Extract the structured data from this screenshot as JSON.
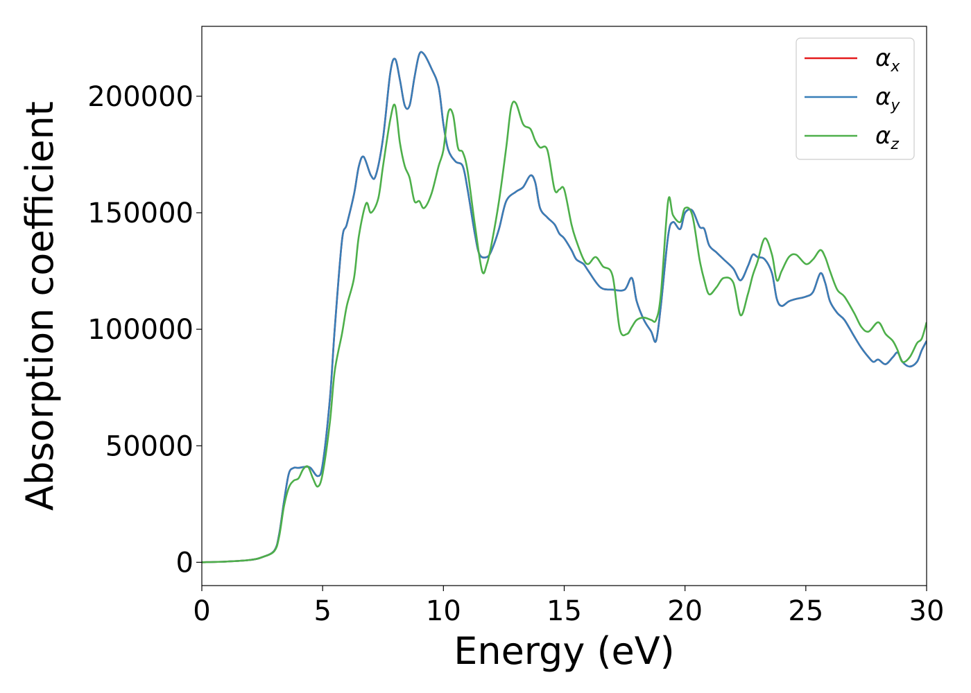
{
  "chart_data": {
    "type": "line",
    "title": "",
    "xlabel": "Energy (eV)",
    "ylabel": "Absorption coefficient",
    "xlim": [
      0,
      30
    ],
    "ylim": [
      -10000,
      230000
    ],
    "xticks": [
      0,
      5,
      10,
      15,
      20,
      25,
      30
    ],
    "xtick_labels": [
      "0",
      "5",
      "10",
      "15",
      "20",
      "25",
      "30"
    ],
    "yticks": [
      0,
      50000,
      100000,
      150000,
      200000
    ],
    "ytick_labels": [
      "0",
      "50000",
      "100000",
      "150000",
      "200000"
    ],
    "grid": false,
    "legend_position": "top-right",
    "series": [
      {
        "name": "α",
        "subscript": "x",
        "color": "#e41a1c",
        "x": [
          0,
          1,
          2,
          2.5,
          3.0,
          3.2,
          3.4,
          3.6,
          3.8,
          4.0,
          4.3,
          4.5,
          4.8,
          5.0,
          5.3,
          5.5,
          5.8,
          6.0,
          6.3,
          6.5,
          6.7,
          7.0,
          7.2,
          7.5,
          7.8,
          8.0,
          8.2,
          8.4,
          8.6,
          8.8,
          9.0,
          9.2,
          9.5,
          9.8,
          10.0,
          10.2,
          10.5,
          10.8,
          11.0,
          11.3,
          11.5,
          11.8,
          12.0,
          12.3,
          12.6,
          13.0,
          13.3,
          13.6,
          13.8,
          14.0,
          14.3,
          14.6,
          14.8,
          15.0,
          15.3,
          15.5,
          15.8,
          16.0,
          16.5,
          17.0,
          17.5,
          17.8,
          18.0,
          18.3,
          18.6,
          18.8,
          19.0,
          19.3,
          19.5,
          19.8,
          20.0,
          20.3,
          20.6,
          20.8,
          21.0,
          21.3,
          21.6,
          22.0,
          22.3,
          22.6,
          22.8,
          23.0,
          23.3,
          23.6,
          23.8,
          24.0,
          24.3,
          24.6,
          25.0,
          25.3,
          25.6,
          25.8,
          26.0,
          26.3,
          26.6,
          27.0,
          27.3,
          27.6,
          27.8,
          28.0,
          28.3,
          28.6,
          28.8,
          29.0,
          29.3,
          29.6,
          29.8,
          30.0
        ],
        "y": [
          0,
          300,
          1000,
          2200,
          5000,
          12000,
          26000,
          38000,
          40500,
          40500,
          41000,
          40500,
          37000,
          42000,
          70000,
          100000,
          138000,
          145000,
          158000,
          170000,
          174000,
          166000,
          166000,
          182000,
          210000,
          216000,
          207000,
          196000,
          196000,
          208000,
          218000,
          218000,
          212000,
          204000,
          188000,
          177000,
          172000,
          170000,
          160000,
          141000,
          132000,
          131000,
          134000,
          143000,
          155000,
          159000,
          161000,
          166000,
          163000,
          152000,
          148000,
          145000,
          141000,
          139000,
          134000,
          130000,
          128000,
          125000,
          118000,
          117000,
          117000,
          122000,
          112000,
          104000,
          99000,
          95000,
          110000,
          140000,
          146000,
          143000,
          150000,
          151000,
          144000,
          143000,
          136000,
          133000,
          130000,
          126000,
          121000,
          127000,
          132000,
          131000,
          130000,
          124000,
          113000,
          110000,
          112000,
          113000,
          114000,
          116000,
          124000,
          120000,
          112000,
          107000,
          104000,
          97000,
          92000,
          88000,
          86000,
          87000,
          85000,
          88000,
          90000,
          86000,
          84000,
          86000,
          91000,
          95000
        ]
      },
      {
        "name": "α",
        "subscript": "y",
        "color": "#377eb8",
        "x": [
          0,
          1,
          2,
          2.5,
          3.0,
          3.2,
          3.4,
          3.6,
          3.8,
          4.0,
          4.3,
          4.5,
          4.8,
          5.0,
          5.3,
          5.5,
          5.8,
          6.0,
          6.3,
          6.5,
          6.7,
          7.0,
          7.2,
          7.5,
          7.8,
          8.0,
          8.2,
          8.4,
          8.6,
          8.8,
          9.0,
          9.2,
          9.5,
          9.8,
          10.0,
          10.2,
          10.5,
          10.8,
          11.0,
          11.3,
          11.5,
          11.8,
          12.0,
          12.3,
          12.6,
          13.0,
          13.3,
          13.6,
          13.8,
          14.0,
          14.3,
          14.6,
          14.8,
          15.0,
          15.3,
          15.5,
          15.8,
          16.0,
          16.5,
          17.0,
          17.5,
          17.8,
          18.0,
          18.3,
          18.6,
          18.8,
          19.0,
          19.3,
          19.5,
          19.8,
          20.0,
          20.3,
          20.6,
          20.8,
          21.0,
          21.3,
          21.6,
          22.0,
          22.3,
          22.6,
          22.8,
          23.0,
          23.3,
          23.6,
          23.8,
          24.0,
          24.3,
          24.6,
          25.0,
          25.3,
          25.6,
          25.8,
          26.0,
          26.3,
          26.6,
          27.0,
          27.3,
          27.6,
          27.8,
          28.0,
          28.3,
          28.6,
          28.8,
          29.0,
          29.3,
          29.6,
          29.8,
          30.0
        ],
        "y": [
          0,
          300,
          1000,
          2200,
          5000,
          12000,
          26000,
          38000,
          40500,
          40500,
          41000,
          40500,
          37000,
          42000,
          70000,
          100000,
          138000,
          145000,
          158000,
          170000,
          174000,
          166000,
          166000,
          182000,
          210000,
          216000,
          207000,
          196000,
          196000,
          208000,
          218000,
          218000,
          212000,
          204000,
          188000,
          177000,
          172000,
          170000,
          160000,
          141000,
          132000,
          131000,
          134000,
          143000,
          155000,
          159000,
          161000,
          166000,
          163000,
          152000,
          148000,
          145000,
          141000,
          139000,
          134000,
          130000,
          128000,
          125000,
          118000,
          117000,
          117000,
          122000,
          112000,
          104000,
          99000,
          95000,
          110000,
          140000,
          146000,
          143000,
          150000,
          151000,
          144000,
          143000,
          136000,
          133000,
          130000,
          126000,
          121000,
          127000,
          132000,
          131000,
          130000,
          124000,
          113000,
          110000,
          112000,
          113000,
          114000,
          116000,
          124000,
          120000,
          112000,
          107000,
          104000,
          97000,
          92000,
          88000,
          86000,
          87000,
          85000,
          88000,
          90000,
          86000,
          84000,
          86000,
          91000,
          95000
        ]
      },
      {
        "name": "α",
        "subscript": "z",
        "color": "#4daf4a",
        "x": [
          0,
          1,
          2,
          2.5,
          3.0,
          3.2,
          3.4,
          3.6,
          3.8,
          4.0,
          4.2,
          4.4,
          4.6,
          4.8,
          5.0,
          5.3,
          5.5,
          5.8,
          6.0,
          6.3,
          6.5,
          6.8,
          7.0,
          7.3,
          7.5,
          7.8,
          8.0,
          8.2,
          8.4,
          8.6,
          8.8,
          9.0,
          9.2,
          9.5,
          9.8,
          10.0,
          10.2,
          10.4,
          10.6,
          10.8,
          11.0,
          11.3,
          11.6,
          11.8,
          12.0,
          12.3,
          12.6,
          12.8,
          13.0,
          13.3,
          13.6,
          13.8,
          14.0,
          14.3,
          14.6,
          14.8,
          15.0,
          15.3,
          15.5,
          15.8,
          16.0,
          16.3,
          16.6,
          17.0,
          17.3,
          17.6,
          17.8,
          18.0,
          18.3,
          18.6,
          18.8,
          19.0,
          19.3,
          19.5,
          19.8,
          20.0,
          20.3,
          20.6,
          20.8,
          21.0,
          21.3,
          21.6,
          22.0,
          22.3,
          22.6,
          22.8,
          23.0,
          23.3,
          23.6,
          23.8,
          24.0,
          24.3,
          24.6,
          25.0,
          25.3,
          25.6,
          25.8,
          26.0,
          26.3,
          26.6,
          27.0,
          27.3,
          27.6,
          28.0,
          28.3,
          28.6,
          28.8,
          29.0,
          29.3,
          29.6,
          29.8,
          30.0
        ],
        "y": [
          0,
          300,
          1000,
          2200,
          4800,
          11000,
          24000,
          32000,
          35000,
          36000,
          40000,
          41000,
          36000,
          32500,
          38000,
          60000,
          82000,
          98000,
          110000,
          122000,
          140000,
          154000,
          150000,
          156000,
          170000,
          190000,
          196000,
          180000,
          170000,
          165000,
          155000,
          155000,
          152000,
          158000,
          170000,
          177000,
          193000,
          192000,
          178000,
          176000,
          168000,
          145000,
          125000,
          128000,
          137000,
          155000,
          178000,
          195000,
          197000,
          188000,
          186000,
          181000,
          178000,
          177000,
          160000,
          160000,
          160000,
          145000,
          138000,
          130000,
          128000,
          131000,
          127000,
          123000,
          100000,
          98000,
          101000,
          104000,
          105000,
          104000,
          104000,
          115000,
          155000,
          149000,
          146000,
          152000,
          149000,
          130000,
          121000,
          115000,
          118000,
          122000,
          120000,
          106000,
          115000,
          123000,
          129000,
          139000,
          132000,
          121000,
          125000,
          131000,
          132000,
          128000,
          130000,
          134000,
          131000,
          125000,
          117000,
          114000,
          107000,
          101000,
          99000,
          103000,
          98000,
          95000,
          91000,
          86000,
          88000,
          94000,
          96000,
          103000
        ]
      }
    ]
  }
}
